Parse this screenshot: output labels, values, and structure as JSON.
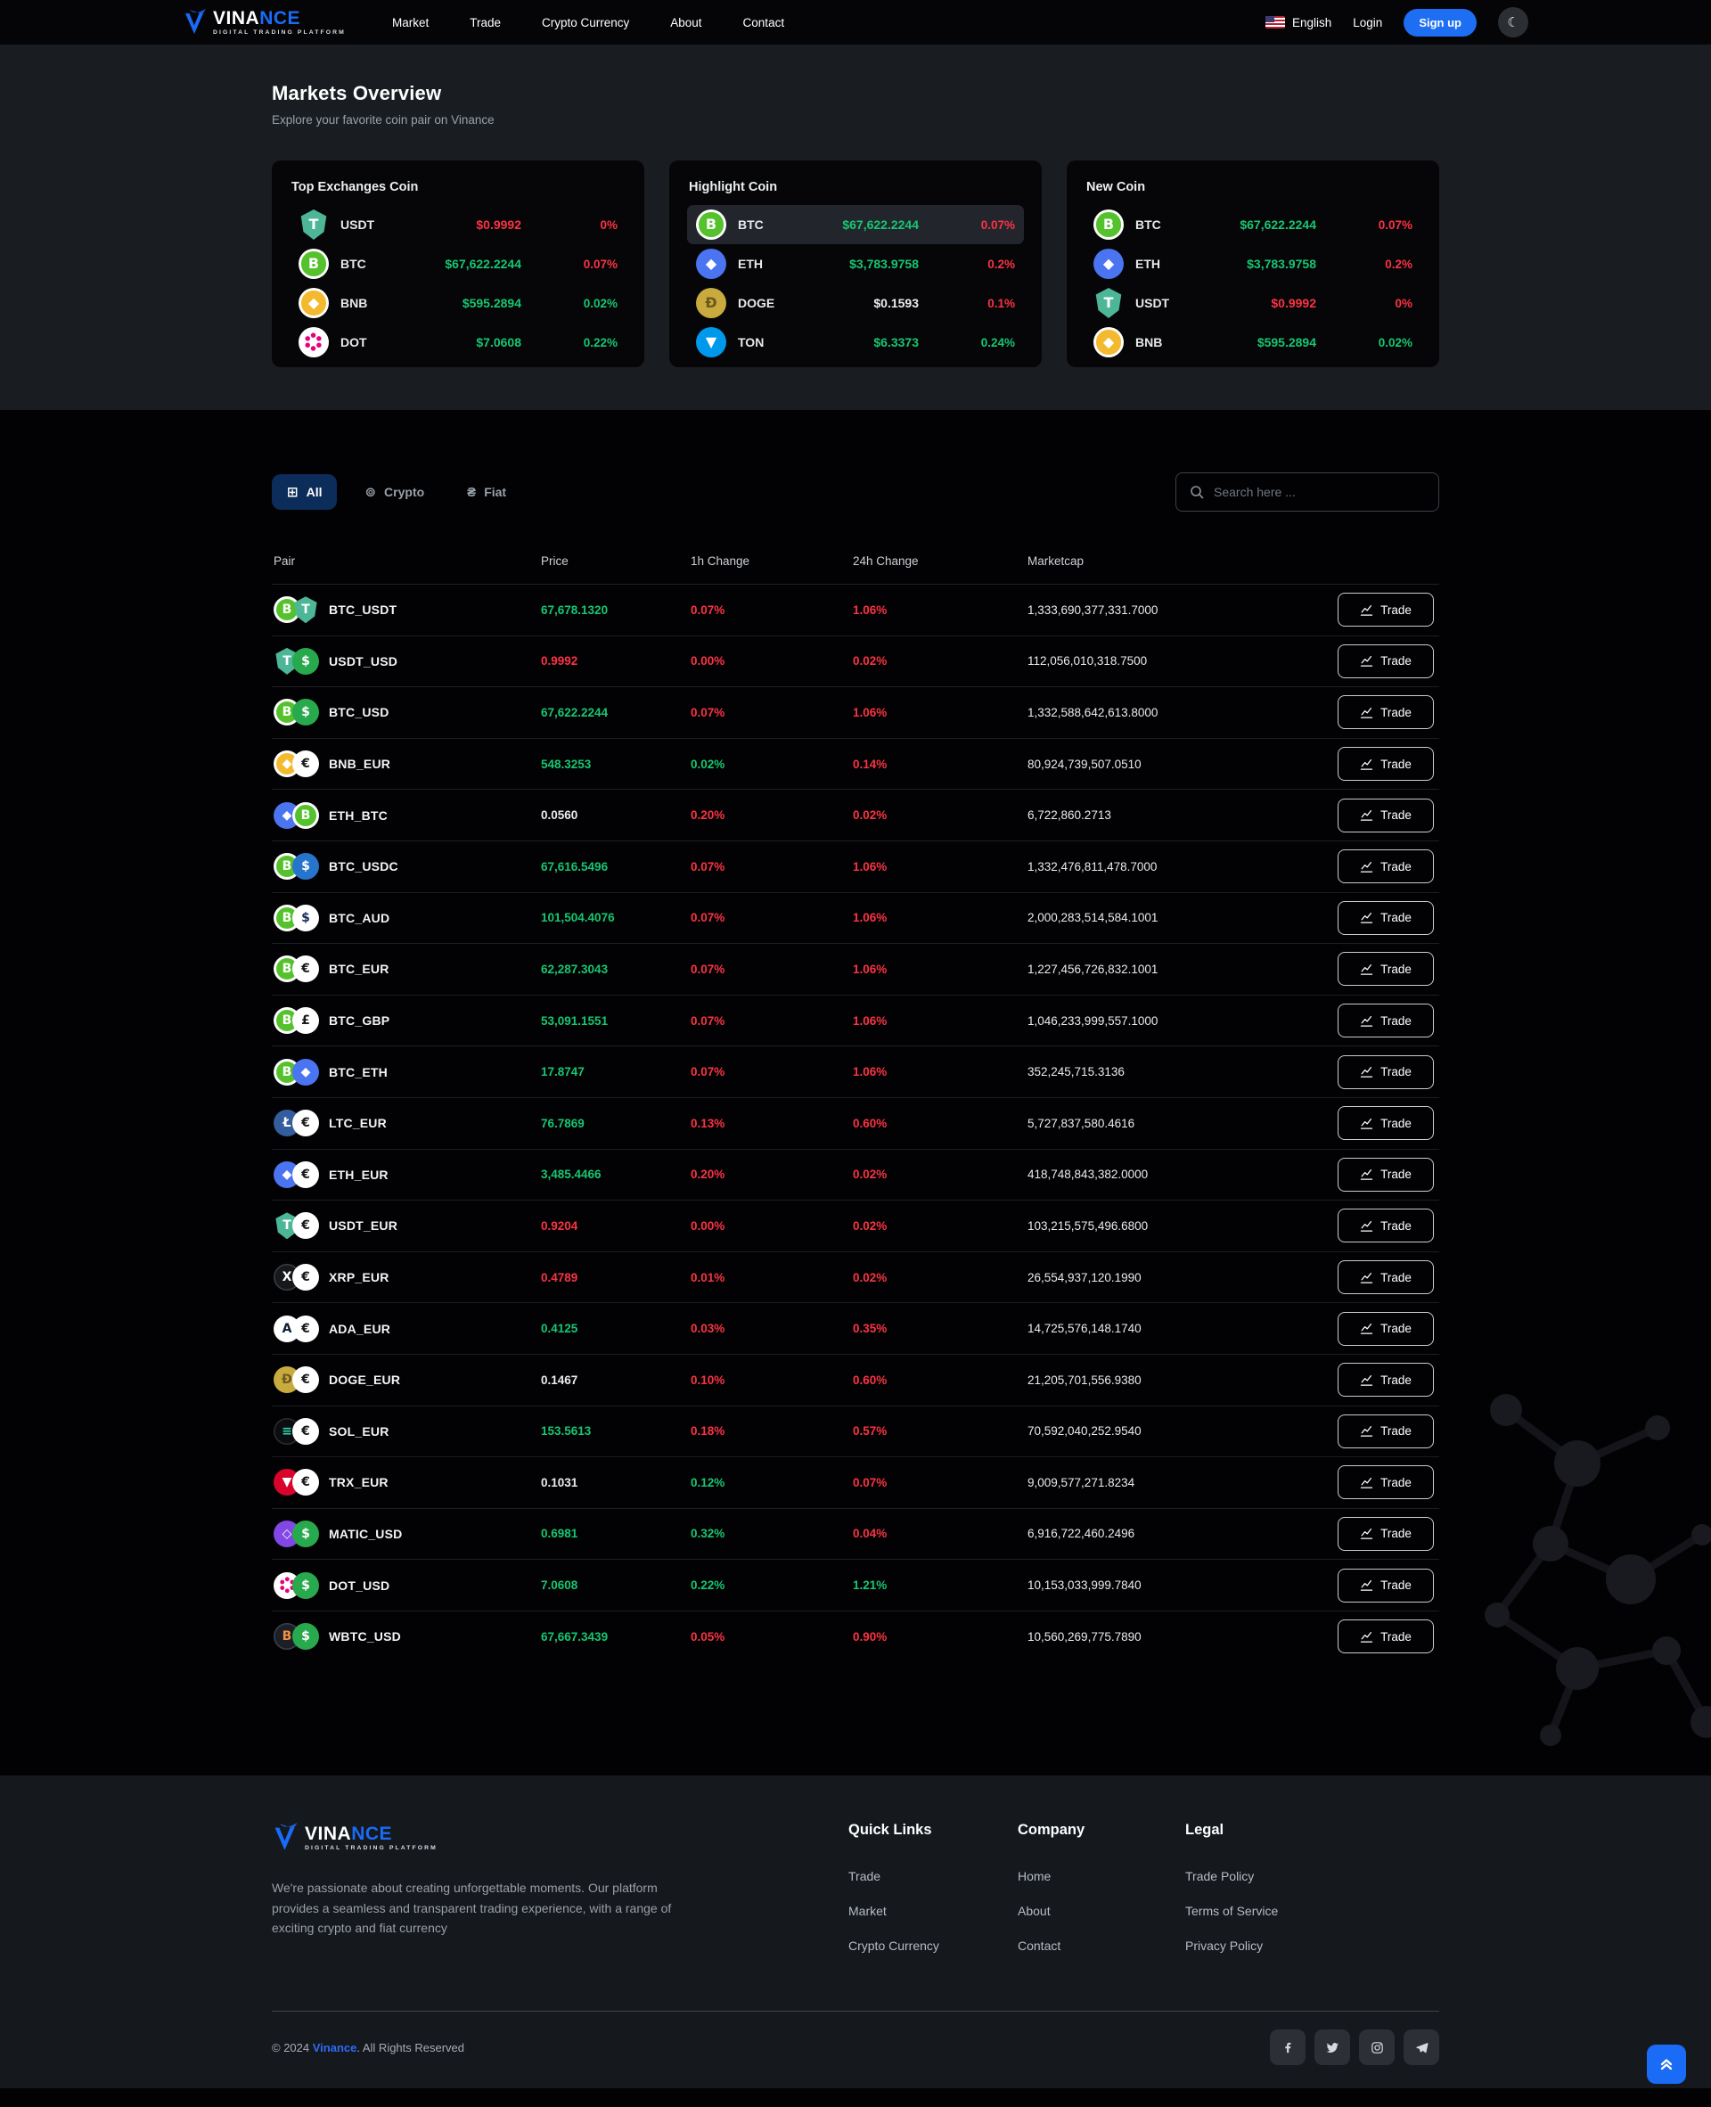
{
  "header": {
    "brand": {
      "word_white": "VINA",
      "word_blue": "NCE",
      "tagline": "DIGITAL TRADING PLATFORM"
    },
    "nav_links": [
      "Market",
      "Trade",
      "Crypto Currency",
      "About",
      "Contact"
    ],
    "language": "English",
    "login_label": "Login",
    "signup_label": "Sign up",
    "mode_icon": "moon-icon"
  },
  "hero": {
    "title": "Markets Overview",
    "subtitle": "Explore your favorite coin pair on Vinance"
  },
  "market_cards": [
    {
      "title": "Top Exchanges Coin",
      "rows": [
        {
          "symbol": "USDT",
          "price": "$0.9992",
          "price_dir": "down",
          "change": "0%",
          "change_dir": "down",
          "highlight": false
        },
        {
          "symbol": "BTC",
          "price": "$67,622.2244",
          "price_dir": "up",
          "change": "0.07%",
          "change_dir": "down",
          "highlight": false
        },
        {
          "symbol": "BNB",
          "price": "$595.2894",
          "price_dir": "up",
          "change": "0.02%",
          "change_dir": "up",
          "highlight": false
        },
        {
          "symbol": "DOT",
          "price": "$7.0608",
          "price_dir": "up",
          "change": "0.22%",
          "change_dir": "up",
          "highlight": false
        }
      ]
    },
    {
      "title": "Highlight Coin",
      "rows": [
        {
          "symbol": "BTC",
          "price": "$67,622.2244",
          "price_dir": "up",
          "change": "0.07%",
          "change_dir": "down",
          "highlight": true
        },
        {
          "symbol": "ETH",
          "price": "$3,783.9758",
          "price_dir": "up",
          "change": "0.2%",
          "change_dir": "down",
          "highlight": false
        },
        {
          "symbol": "DOGE",
          "price": "$0.1593",
          "price_dir": "neutral",
          "change": "0.1%",
          "change_dir": "down",
          "highlight": false
        },
        {
          "symbol": "TON",
          "price": "$6.3373",
          "price_dir": "up",
          "change": "0.24%",
          "change_dir": "up",
          "highlight": false
        }
      ]
    },
    {
      "title": "New Coin",
      "rows": [
        {
          "symbol": "BTC",
          "price": "$67,622.2244",
          "price_dir": "up",
          "change": "0.07%",
          "change_dir": "down",
          "highlight": false
        },
        {
          "symbol": "ETH",
          "price": "$3,783.9758",
          "price_dir": "up",
          "change": "0.2%",
          "change_dir": "down",
          "highlight": false
        },
        {
          "symbol": "USDT",
          "price": "$0.9992",
          "price_dir": "down",
          "change": "0%",
          "change_dir": "down",
          "highlight": false
        },
        {
          "symbol": "BNB",
          "price": "$595.2894",
          "price_dir": "up",
          "change": "0.02%",
          "change_dir": "up",
          "highlight": false
        }
      ]
    }
  ],
  "filters": {
    "tabs": [
      {
        "label": "All",
        "icon": "grid-icon",
        "glyph": "⊞",
        "active": true
      },
      {
        "label": "Crypto",
        "icon": "coins-icon",
        "glyph": "⊚",
        "active": false
      },
      {
        "label": "Fiat",
        "icon": "fiat-icon",
        "glyph": "₴",
        "active": false
      }
    ],
    "search_placeholder": "Search here ..."
  },
  "table": {
    "headers": [
      "Pair",
      "Price",
      "1h Change",
      "24h Change",
      "Marketcap"
    ],
    "trade_label": "Trade",
    "rows": [
      {
        "pair": "BTC_USDT",
        "base": "BTC",
        "quote": "USDT",
        "price": "67,678.1320",
        "price_dir": "up",
        "h1": "0.07%",
        "h1_dir": "down",
        "h24": "1.06%",
        "h24_dir": "down",
        "marketcap": "1,333,690,377,331.7000"
      },
      {
        "pair": "USDT_USD",
        "base": "USDT",
        "quote": "USD",
        "price": "0.9992",
        "price_dir": "down",
        "h1": "0.00%",
        "h1_dir": "down",
        "h24": "0.02%",
        "h24_dir": "down",
        "marketcap": "112,056,010,318.7500"
      },
      {
        "pair": "BTC_USD",
        "base": "BTC",
        "quote": "USD",
        "price": "67,622.2244",
        "price_dir": "up",
        "h1": "0.07%",
        "h1_dir": "down",
        "h24": "1.06%",
        "h24_dir": "down",
        "marketcap": "1,332,588,642,613.8000"
      },
      {
        "pair": "BNB_EUR",
        "base": "BNB",
        "quote": "EUR",
        "price": "548.3253",
        "price_dir": "up",
        "h1": "0.02%",
        "h1_dir": "up",
        "h24": "0.14%",
        "h24_dir": "down",
        "marketcap": "80,924,739,507.0510"
      },
      {
        "pair": "ETH_BTC",
        "base": "ETH",
        "quote": "BTC",
        "price": "0.0560",
        "price_dir": "neutral",
        "h1": "0.20%",
        "h1_dir": "down",
        "h24": "0.02%",
        "h24_dir": "down",
        "marketcap": "6,722,860.2713"
      },
      {
        "pair": "BTC_USDC",
        "base": "BTC",
        "quote": "USDC",
        "price": "67,616.5496",
        "price_dir": "up",
        "h1": "0.07%",
        "h1_dir": "down",
        "h24": "1.06%",
        "h24_dir": "down",
        "marketcap": "1,332,476,811,478.7000"
      },
      {
        "pair": "BTC_AUD",
        "base": "BTC",
        "quote": "AUD",
        "price": "101,504.4076",
        "price_dir": "up",
        "h1": "0.07%",
        "h1_dir": "down",
        "h24": "1.06%",
        "h24_dir": "down",
        "marketcap": "2,000,283,514,584.1001"
      },
      {
        "pair": "BTC_EUR",
        "base": "BTC",
        "quote": "EUR",
        "price": "62,287.3043",
        "price_dir": "up",
        "h1": "0.07%",
        "h1_dir": "down",
        "h24": "1.06%",
        "h24_dir": "down",
        "marketcap": "1,227,456,726,832.1001"
      },
      {
        "pair": "BTC_GBP",
        "base": "BTC",
        "quote": "GBP",
        "price": "53,091.1551",
        "price_dir": "up",
        "h1": "0.07%",
        "h1_dir": "down",
        "h24": "1.06%",
        "h24_dir": "down",
        "marketcap": "1,046,233,999,557.1000"
      },
      {
        "pair": "BTC_ETH",
        "base": "BTC",
        "quote": "ETH",
        "price": "17.8747",
        "price_dir": "up",
        "h1": "0.07%",
        "h1_dir": "down",
        "h24": "1.06%",
        "h24_dir": "down",
        "marketcap": "352,245,715.3136"
      },
      {
        "pair": "LTC_EUR",
        "base": "LTC",
        "quote": "EUR",
        "price": "76.7869",
        "price_dir": "up",
        "h1": "0.13%",
        "h1_dir": "down",
        "h24": "0.60%",
        "h24_dir": "down",
        "marketcap": "5,727,837,580.4616"
      },
      {
        "pair": "ETH_EUR",
        "base": "ETH",
        "quote": "EUR",
        "price": "3,485.4466",
        "price_dir": "up",
        "h1": "0.20%",
        "h1_dir": "down",
        "h24": "0.02%",
        "h24_dir": "down",
        "marketcap": "418,748,843,382.0000"
      },
      {
        "pair": "USDT_EUR",
        "base": "USDT",
        "quote": "EUR",
        "price": "0.9204",
        "price_dir": "down",
        "h1": "0.00%",
        "h1_dir": "down",
        "h24": "0.02%",
        "h24_dir": "down",
        "marketcap": "103,215,575,496.6800"
      },
      {
        "pair": "XRP_EUR",
        "base": "XRP",
        "quote": "EUR",
        "price": "0.4789",
        "price_dir": "down",
        "h1": "0.01%",
        "h1_dir": "down",
        "h24": "0.02%",
        "h24_dir": "down",
        "marketcap": "26,554,937,120.1990"
      },
      {
        "pair": "ADA_EUR",
        "base": "ADA",
        "quote": "EUR",
        "price": "0.4125",
        "price_dir": "up",
        "h1": "0.03%",
        "h1_dir": "down",
        "h24": "0.35%",
        "h24_dir": "down",
        "marketcap": "14,725,576,148.1740"
      },
      {
        "pair": "DOGE_EUR",
        "base": "DOGE",
        "quote": "EUR",
        "price": "0.1467",
        "price_dir": "neutral",
        "h1": "0.10%",
        "h1_dir": "down",
        "h24": "0.60%",
        "h24_dir": "down",
        "marketcap": "21,205,701,556.9380"
      },
      {
        "pair": "SOL_EUR",
        "base": "SOL",
        "quote": "EUR",
        "price": "153.5613",
        "price_dir": "up",
        "h1": "0.18%",
        "h1_dir": "down",
        "h24": "0.57%",
        "h24_dir": "down",
        "marketcap": "70,592,040,252.9540"
      },
      {
        "pair": "TRX_EUR",
        "base": "TRX",
        "quote": "EUR",
        "price": "0.1031",
        "price_dir": "neutral",
        "h1": "0.12%",
        "h1_dir": "up",
        "h24": "0.07%",
        "h24_dir": "down",
        "marketcap": "9,009,577,271.8234"
      },
      {
        "pair": "MATIC_USD",
        "base": "MATIC",
        "quote": "USD",
        "price": "0.6981",
        "price_dir": "up",
        "h1": "0.32%",
        "h1_dir": "up",
        "h24": "0.04%",
        "h24_dir": "down",
        "marketcap": "6,916,722,460.2496"
      },
      {
        "pair": "DOT_USD",
        "base": "DOT",
        "quote": "USD",
        "price": "7.0608",
        "price_dir": "up",
        "h1": "0.22%",
        "h1_dir": "up",
        "h24": "1.21%",
        "h24_dir": "up",
        "marketcap": "10,153,033,999.7840"
      },
      {
        "pair": "WBTC_USD",
        "base": "WBTC",
        "quote": "USD",
        "price": "67,667.3439",
        "price_dir": "up",
        "h1": "0.05%",
        "h1_dir": "down",
        "h24": "0.90%",
        "h24_dir": "down",
        "marketcap": "10,560,269,775.7890"
      }
    ]
  },
  "coins": {
    "BTC": {
      "bg": "#ffffff",
      "inner": "#55c22d",
      "glyph": "B",
      "fg": "#ffffff"
    },
    "USDT": {
      "bg": "#4db696",
      "glyph": "T",
      "fg": "#ffffff",
      "shape": "shield"
    },
    "USD": {
      "bg": "#28a94d",
      "glyph": "$",
      "fg": "#ffffff"
    },
    "EUR": {
      "bg": "#ffffff",
      "glyph": "€",
      "fg": "#17181b"
    },
    "ETH": {
      "bg": "#4a74f0",
      "glyph": "◆",
      "fg": "#ffffff"
    },
    "USDC": {
      "bg": "#2775ca",
      "glyph": "$",
      "fg": "#ffffff"
    },
    "AUD": {
      "bg": "#ffffff",
      "glyph": "$",
      "fg": "#1c2b5e"
    },
    "GBP": {
      "bg": "#ffffff",
      "glyph": "£",
      "fg": "#17181b"
    },
    "LTC": {
      "bg": "#345d9d",
      "glyph": "Ł",
      "fg": "#ffffff"
    },
    "XRP": {
      "bg": "#17181b",
      "glyph": "X",
      "fg": "#ffffff",
      "border": "#3a3d42"
    },
    "ADA": {
      "bg": "#ffffff",
      "glyph": "A",
      "fg": "#0d1e30"
    },
    "DOGE": {
      "bg": "#c9aa3e",
      "glyph": "Ð",
      "fg": "#6b5a1e"
    },
    "SOL": {
      "bg": "#0c0d10",
      "glyph": "≡",
      "fg": "#2fd8b2",
      "border": "#2a2d33"
    },
    "TRX": {
      "bg": "#d9042c",
      "glyph": "▼",
      "fg": "#ffffff"
    },
    "MATIC": {
      "bg": "#8247e5",
      "glyph": "◇",
      "fg": "#ffffff"
    },
    "DOT": {
      "bg": "#ffffff",
      "glyph": "dots",
      "fg": "#e6007a"
    },
    "WBTC": {
      "bg": "#1c1f26",
      "glyph": "B",
      "fg": "#f09242",
      "border": "#3a3f4a"
    },
    "BNB": {
      "bg": "#ffffff",
      "inner": "#f3ba2f",
      "glyph": "◆",
      "fg": "#ffffff"
    },
    "TON": {
      "bg": "#0098ea",
      "glyph": "▼",
      "fg": "#ffffff"
    }
  },
  "footer": {
    "about": "We're passionate about creating unforgettable moments. Our platform provides a seamless and transparent trading experience, with a range of exciting crypto and fiat currency",
    "columns": [
      {
        "title": "Quick Links",
        "links": [
          "Trade",
          "Market",
          "Crypto Currency"
        ]
      },
      {
        "title": "Company",
        "links": [
          "Home",
          "About",
          "Contact"
        ]
      },
      {
        "title": "Legal",
        "links": [
          "Trade Policy",
          "Terms of Service",
          "Privacy Policy"
        ]
      }
    ],
    "copyright_prefix": "© 2024 ",
    "copyright_brand": "Vinance",
    "copyright_suffix": ". All Rights Reserved",
    "socials": [
      "facebook",
      "twitter",
      "instagram",
      "telegram"
    ]
  },
  "colors": {
    "up": "#17c671",
    "down": "#fa3343",
    "accent": "#1d6ef2",
    "active_tab": "#0c2c59"
  }
}
